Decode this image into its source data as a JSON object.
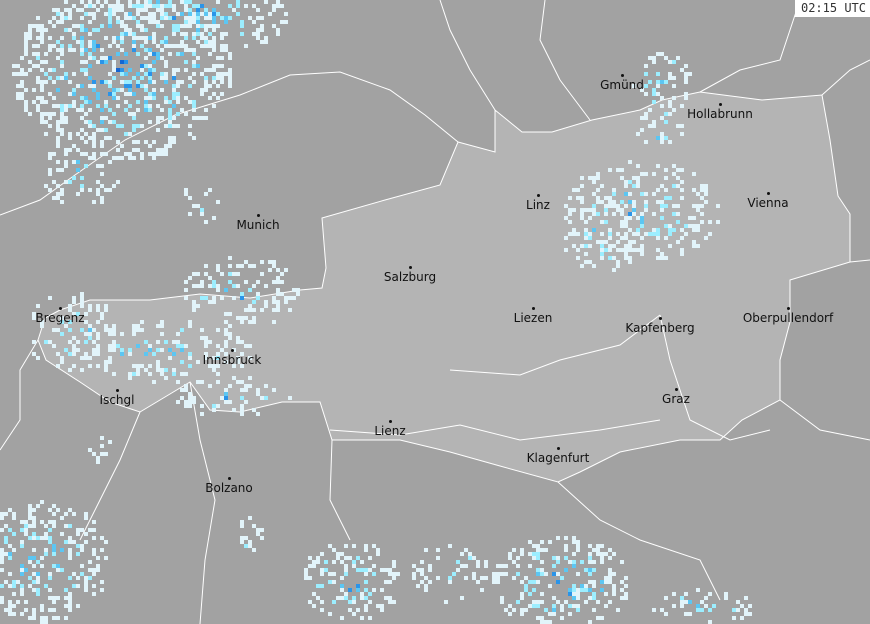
{
  "timestamp": "02:15 UTC",
  "colors": {
    "background": "#a2a2a2",
    "austria": "#b4b4b4",
    "borders": "#ffffff",
    "precip_light": "#e2f4fa",
    "precip_moderate": "#9ceeff",
    "precip_medium": "#5cc6f2",
    "precip_heavy": "#2a94e8",
    "precip_very_heavy": "#1466d2"
  },
  "cities": [
    {
      "name": "Gmünd"
    },
    {
      "name": "Hollabrunn"
    },
    {
      "name": "Linz"
    },
    {
      "name": "Vienna"
    },
    {
      "name": "Munich"
    },
    {
      "name": "Salzburg"
    },
    {
      "name": "Bregenz"
    },
    {
      "name": "Liezen"
    },
    {
      "name": "Kapfenberg"
    },
    {
      "name": "Oberpullendorf"
    },
    {
      "name": "Innsbruck"
    },
    {
      "name": "Ischgl"
    },
    {
      "name": "Graz"
    },
    {
      "name": "Lienz"
    },
    {
      "name": "Klagenfurt"
    },
    {
      "name": "Bolzano"
    }
  ]
}
